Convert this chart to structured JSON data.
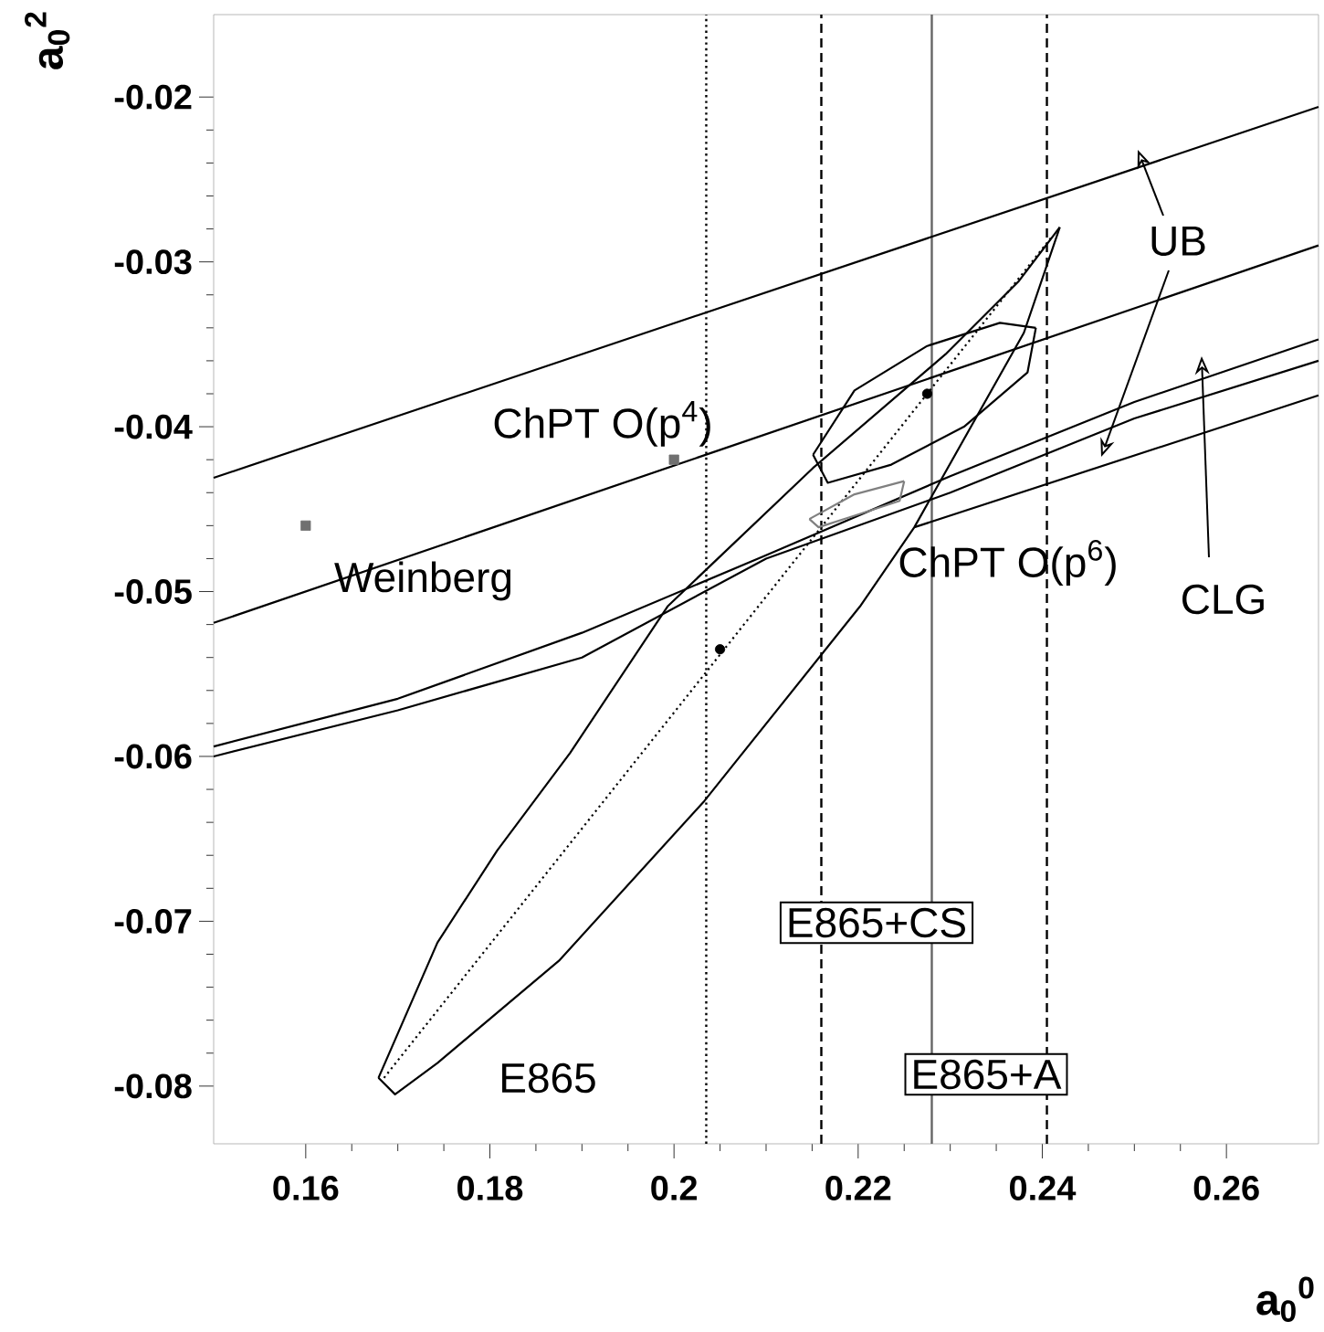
{
  "chart_data": {
    "type": "line",
    "xlabel": "a$_{0}$$^{0}$",
    "ylabel": "a$_{0}$$^{2}$",
    "xlim": [
      0.15,
      0.27
    ],
    "ylim": [
      -0.0835,
      -0.015
    ],
    "xticks": [
      {
        "value": 0.16,
        "label": "0.16"
      },
      {
        "value": 0.18,
        "label": "0.18"
      },
      {
        "value": 0.2,
        "label": "0.2"
      },
      {
        "value": 0.22,
        "label": "0.22"
      },
      {
        "value": 0.24,
        "label": "0.24"
      },
      {
        "value": 0.26,
        "label": "0.26"
      }
    ],
    "yticks": [
      {
        "value": -0.08,
        "label": "-0.08"
      },
      {
        "value": -0.07,
        "label": "-0.07"
      },
      {
        "value": -0.06,
        "label": "-0.06"
      },
      {
        "value": -0.05,
        "label": "-0.05"
      },
      {
        "value": -0.04,
        "label": "-0.04"
      },
      {
        "value": -0.03,
        "label": "-0.03"
      },
      {
        "value": -0.02,
        "label": "-0.02"
      }
    ],
    "series": [
      {
        "color": "#000000",
        "line_style": "solid",
        "x": [
          0.15,
          0.27
        ],
        "values": [
          -0.0431,
          -0.0206
        ]
      },
      {
        "color": "#000000",
        "line_style": "solid",
        "x": [
          0.15,
          0.27
        ],
        "values": [
          -0.0519,
          -0.029
        ]
      },
      {
        "color": "#000000",
        "line_style": "solid",
        "x": [
          0.15,
          0.17,
          0.19,
          0.21,
          0.23,
          0.25,
          0.27
        ],
        "values": [
          -0.0594,
          -0.0565,
          -0.0525,
          -0.0478,
          -0.043,
          -0.0385,
          -0.0347
        ]
      },
      {
        "color": "#000000",
        "line_style": "solid",
        "x": [
          0.15,
          0.17,
          0.19,
          0.21,
          0.23,
          0.25,
          0.27
        ],
        "values": [
          -0.06,
          -0.0572,
          -0.054,
          -0.048,
          -0.044,
          -0.0395,
          -0.036
        ]
      },
      {
        "color": "#000000",
        "line_style": "solid",
        "x": [
          0.2261,
          0.27
        ],
        "values": [
          -0.0461,
          -0.0381
        ]
      },
      {
        "color": "#000000",
        "line_style": "solid",
        "x": [
          0.1679,
          0.1743,
          0.1808,
          0.1887,
          0.1993,
          0.2151,
          0.2295,
          0.2374,
          0.2419
        ],
        "values": [
          -0.0795,
          -0.0713,
          -0.0657,
          -0.0598,
          -0.0509,
          -0.0425,
          -0.0356,
          -0.0312,
          -0.0279
        ]
      },
      {
        "color": "#000000",
        "line_style": "solid",
        "x": [
          0.1679,
          0.1697,
          0.1743,
          0.1875,
          0.2033,
          0.2202,
          0.2261,
          0.238,
          0.2419
        ],
        "values": [
          -0.0795,
          -0.0805,
          -0.0786,
          -0.0724,
          -0.0627,
          -0.0509,
          -0.0461,
          -0.0343,
          -0.0279
        ]
      },
      {
        "color": "#000000",
        "line_style": "dotted",
        "x": [
          0.1685,
          0.241
        ],
        "values": [
          -0.0795,
          -0.0285
        ]
      },
      {
        "color": "#000000",
        "line_style": "solid",
        "x": [
          0.2151,
          0.2196,
          0.2275,
          0.2354,
          0.2393
        ],
        "values": [
          -0.0417,
          -0.0378,
          -0.0351,
          -0.0337,
          -0.034
        ]
      },
      {
        "color": "#000000",
        "line_style": "solid",
        "x": [
          0.2151,
          0.2167,
          0.2236,
          0.2315,
          0.2384,
          0.2393
        ],
        "values": [
          -0.0417,
          -0.0434,
          -0.0423,
          -0.04,
          -0.0367,
          -0.034
        ]
      },
      {
        "color": "#808080",
        "line_style": "solid",
        "x": [
          0.2147,
          0.2196,
          0.225
        ],
        "values": [
          -0.0456,
          -0.0441,
          -0.0433
        ]
      },
      {
        "color": "#808080",
        "line_style": "solid",
        "x": [
          0.2147,
          0.2157,
          0.2196,
          0.2245,
          0.225
        ],
        "values": [
          -0.0456,
          -0.0461,
          -0.0454,
          -0.0445,
          -0.0433
        ]
      },
      {
        "type": "scatter",
        "marker": "circle",
        "color": "#000000",
        "x": [
          0.205,
          0.2275
        ],
        "values": [
          -0.0535,
          -0.038
        ]
      },
      {
        "type": "scatter",
        "marker": "square",
        "color": "#707070",
        "x": [
          0.16,
          0.2
        ],
        "values": [
          -0.046,
          -0.042
        ]
      }
    ],
    "ref_lines": [
      {
        "axis": "x",
        "value": 0.2035,
        "line_style": "dotted",
        "color": "#000000"
      },
      {
        "axis": "x",
        "value": 0.216,
        "line_style": "dashed",
        "color": "#000000"
      },
      {
        "axis": "x",
        "value": 0.228,
        "line_style": "solid",
        "color": "#666666"
      },
      {
        "axis": "x",
        "value": 0.2405,
        "line_style": "dashed",
        "color": "#000000"
      }
    ],
    "annotations": [
      "ChPT O(p$^{4}$)",
      "Weinberg",
      "ChPT O(p$^{6}$)",
      "UB",
      "CLG",
      "E865",
      "E865+CS",
      "E865+A"
    ]
  }
}
